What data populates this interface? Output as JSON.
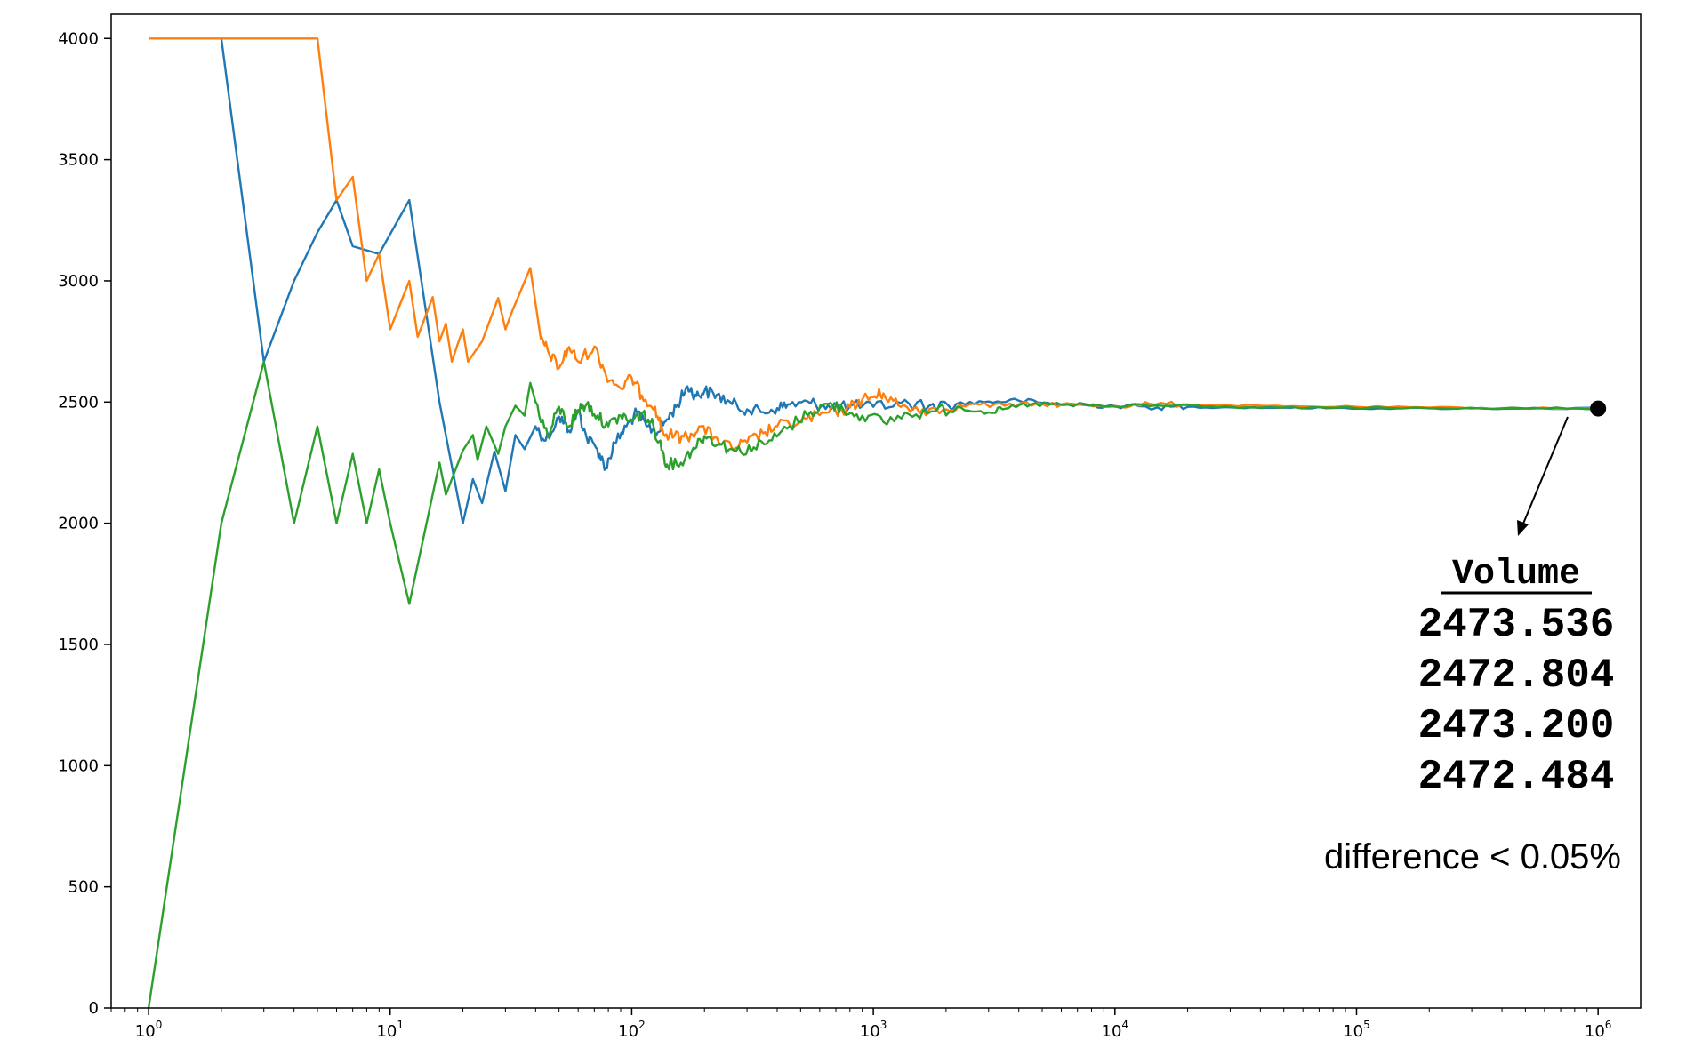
{
  "chart_data": {
    "type": "line",
    "title": "",
    "xlabel": "",
    "ylabel": "",
    "x_scale": "log",
    "xlim": [
      0.7,
      1500000
    ],
    "ylim": [
      0,
      4100
    ],
    "grid": false,
    "legend": "none",
    "x_ticks": [
      {
        "base": "10",
        "exp": "0",
        "value": 1
      },
      {
        "base": "10",
        "exp": "1",
        "value": 10
      },
      {
        "base": "10",
        "exp": "2",
        "value": 100
      },
      {
        "base": "10",
        "exp": "3",
        "value": 1000
      },
      {
        "base": "10",
        "exp": "4",
        "value": 10000
      },
      {
        "base": "10",
        "exp": "5",
        "value": 100000
      },
      {
        "base": "10",
        "exp": "6",
        "value": 1000000
      }
    ],
    "y_ticks": [
      "0",
      "500",
      "1000",
      "1500",
      "2000",
      "2500",
      "3000",
      "3500",
      "4000"
    ],
    "series": [
      {
        "color": "#1f77b4",
        "points": [
          [
            2,
            4000
          ],
          [
            3,
            2667
          ],
          [
            4,
            3000
          ],
          [
            5,
            3200
          ],
          [
            6,
            3333
          ],
          [
            7,
            3143
          ],
          [
            9,
            3111
          ],
          [
            12,
            3333
          ],
          [
            16,
            2500
          ],
          [
            20,
            2000
          ],
          [
            22,
            2182
          ],
          [
            24,
            2083
          ],
          [
            27,
            2296
          ],
          [
            30,
            2133
          ],
          [
            33,
            2364
          ],
          [
            36,
            2306
          ],
          [
            40,
            2400
          ],
          [
            44,
            2341
          ],
          [
            50,
            2440
          ],
          [
            55,
            2382
          ],
          [
            60,
            2467
          ],
          [
            65,
            2354
          ],
          [
            72,
            2306
          ],
          [
            78,
            2228
          ],
          [
            85,
            2329
          ],
          [
            95,
            2400
          ],
          [
            105,
            2457
          ],
          [
            115,
            2400
          ],
          [
            128,
            2375
          ],
          [
            140,
            2429
          ],
          [
            155,
            2490
          ],
          [
            170,
            2565
          ],
          [
            185,
            2524
          ],
          [
            200,
            2545
          ],
          [
            225,
            2530
          ],
          [
            260,
            2492
          ],
          [
            300,
            2470
          ],
          [
            350,
            2458
          ],
          [
            400,
            2475
          ],
          [
            450,
            2490
          ],
          [
            550,
            2495
          ],
          [
            650,
            2487
          ],
          [
            800,
            2483
          ],
          [
            1000,
            2480
          ],
          [
            1300,
            2496
          ],
          [
            1700,
            2484
          ],
          [
            2200,
            2492
          ],
          [
            3000,
            2502
          ],
          [
            4000,
            2506
          ],
          [
            5500,
            2492
          ],
          [
            7500,
            2488
          ],
          [
            10000,
            2484
          ],
          [
            15000,
            2478
          ],
          [
            20000,
            2480
          ],
          [
            30000,
            2478
          ],
          [
            50000,
            2477
          ],
          [
            80000,
            2475
          ],
          [
            150000,
            2474
          ],
          [
            300000,
            2474
          ],
          [
            600000,
            2474
          ],
          [
            1000000,
            2473.536
          ]
        ]
      },
      {
        "color": "#ff7f0e",
        "points": [
          [
            1,
            4000
          ],
          [
            2,
            4000
          ],
          [
            3,
            4000
          ],
          [
            4,
            4000
          ],
          [
            5,
            4000
          ],
          [
            6,
            3333
          ],
          [
            7,
            3429
          ],
          [
            8,
            3000
          ],
          [
            9,
            3111
          ],
          [
            10,
            2800
          ],
          [
            12,
            3000
          ],
          [
            13,
            2769
          ],
          [
            15,
            2933
          ],
          [
            16,
            2750
          ],
          [
            17,
            2824
          ],
          [
            18,
            2667
          ],
          [
            19,
            2737
          ],
          [
            20,
            2800
          ],
          [
            21,
            2667
          ],
          [
            24,
            2750
          ],
          [
            28,
            2929
          ],
          [
            30,
            2800
          ],
          [
            32,
            2875
          ],
          [
            38,
            3053
          ],
          [
            42,
            2762
          ],
          [
            45,
            2711
          ],
          [
            50,
            2640
          ],
          [
            55,
            2727
          ],
          [
            60,
            2667
          ],
          [
            70,
            2729
          ],
          [
            78,
            2615
          ],
          [
            90,
            2556
          ],
          [
            100,
            2600
          ],
          [
            110,
            2527
          ],
          [
            125,
            2480
          ],
          [
            135,
            2370
          ],
          [
            150,
            2360
          ],
          [
            170,
            2353
          ],
          [
            190,
            2400
          ],
          [
            220,
            2355
          ],
          [
            260,
            2308
          ],
          [
            300,
            2333
          ],
          [
            350,
            2371
          ],
          [
            400,
            2400
          ],
          [
            500,
            2420
          ],
          [
            600,
            2446
          ],
          [
            700,
            2460
          ],
          [
            800,
            2478
          ],
          [
            900,
            2511
          ],
          [
            1000,
            2520
          ],
          [
            1100,
            2536
          ],
          [
            1300,
            2480
          ],
          [
            1600,
            2470
          ],
          [
            2000,
            2470
          ],
          [
            2500,
            2490
          ],
          [
            3500,
            2485
          ],
          [
            5000,
            2492
          ],
          [
            7000,
            2488
          ],
          [
            10000,
            2484
          ],
          [
            14000,
            2492
          ],
          [
            20000,
            2490
          ],
          [
            30000,
            2486
          ],
          [
            50000,
            2482
          ],
          [
            100000,
            2480
          ],
          [
            200000,
            2477
          ],
          [
            400000,
            2475
          ],
          [
            1000000,
            2472.804
          ]
        ]
      },
      {
        "color": "#2ca02c",
        "points": [
          [
            1,
            0
          ],
          [
            2,
            2000
          ],
          [
            3,
            2667
          ],
          [
            4,
            2000
          ],
          [
            5,
            2400
          ],
          [
            6,
            2000
          ],
          [
            7,
            2286
          ],
          [
            8,
            2000
          ],
          [
            9,
            2222
          ],
          [
            10,
            2000
          ],
          [
            12,
            1667
          ],
          [
            16,
            2250
          ],
          [
            17,
            2118
          ],
          [
            20,
            2300
          ],
          [
            22,
            2364
          ],
          [
            23,
            2261
          ],
          [
            25,
            2400
          ],
          [
            28,
            2286
          ],
          [
            30,
            2400
          ],
          [
            33,
            2485
          ],
          [
            36,
            2444
          ],
          [
            38,
            2579
          ],
          [
            40,
            2500
          ],
          [
            45,
            2356
          ],
          [
            50,
            2480
          ],
          [
            55,
            2400
          ],
          [
            60,
            2467
          ],
          [
            65,
            2492
          ],
          [
            72,
            2444
          ],
          [
            80,
            2400
          ],
          [
            90,
            2444
          ],
          [
            100,
            2420
          ],
          [
            110,
            2455
          ],
          [
            120,
            2417
          ],
          [
            130,
            2338
          ],
          [
            140,
            2243
          ],
          [
            160,
            2250
          ],
          [
            180,
            2311
          ],
          [
            200,
            2360
          ],
          [
            230,
            2330
          ],
          [
            270,
            2296
          ],
          [
            320,
            2313
          ],
          [
            380,
            2342
          ],
          [
            450,
            2400
          ],
          [
            550,
            2460
          ],
          [
            650,
            2492
          ],
          [
            750,
            2470
          ],
          [
            900,
            2444
          ],
          [
            1100,
            2418
          ],
          [
            1400,
            2450
          ],
          [
            1800,
            2462
          ],
          [
            2300,
            2478
          ],
          [
            3000,
            2457
          ],
          [
            3500,
            2472
          ],
          [
            4500,
            2491
          ],
          [
            6000,
            2489
          ],
          [
            9000,
            2482
          ],
          [
            15000,
            2486
          ],
          [
            25000,
            2482
          ],
          [
            40000,
            2477
          ],
          [
            80000,
            2476
          ],
          [
            200000,
            2474
          ],
          [
            500000,
            2474
          ],
          [
            1000000,
            2473.2
          ]
        ]
      }
    ],
    "endpoint_marker": {
      "x": 1000000,
      "y": 2473.2
    },
    "annotation": {
      "title": "Volume",
      "values": [
        "2473.536",
        "2472.804",
        "2473.200",
        "2472.484"
      ],
      "note": "difference < 0.05%"
    }
  }
}
